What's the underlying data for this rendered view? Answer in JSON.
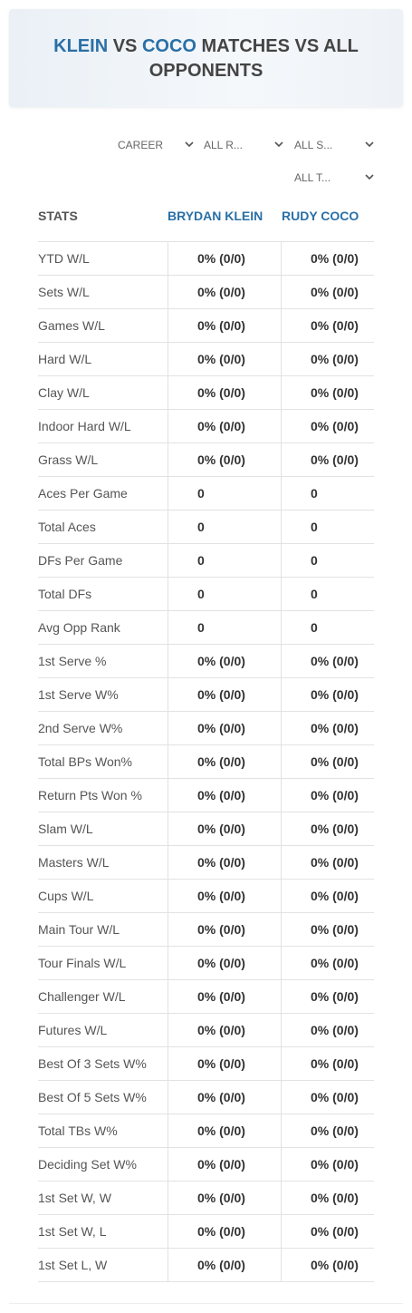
{
  "header": {
    "player1": "KLEIN",
    "vs": "VS",
    "player2": "COCO",
    "rest": "MATCHES VS ALL OPPONENTS"
  },
  "filters": [
    "CAREER",
    "ALL R...",
    "ALL S...",
    "ALL T..."
  ],
  "table": {
    "columns": [
      "STATS",
      "BRYDAN KLEIN",
      "RUDY COCO"
    ],
    "rows": [
      [
        "YTD W/L",
        "0% (0/0)",
        "0% (0/0)"
      ],
      [
        "Sets W/L",
        "0% (0/0)",
        "0% (0/0)"
      ],
      [
        "Games W/L",
        "0% (0/0)",
        "0% (0/0)"
      ],
      [
        "Hard W/L",
        "0% (0/0)",
        "0% (0/0)"
      ],
      [
        "Clay W/L",
        "0% (0/0)",
        "0% (0/0)"
      ],
      [
        "Indoor Hard W/L",
        "0% (0/0)",
        "0% (0/0)"
      ],
      [
        "Grass W/L",
        "0% (0/0)",
        "0% (0/0)"
      ],
      [
        "Aces Per Game",
        "0",
        "0"
      ],
      [
        "Total Aces",
        "0",
        "0"
      ],
      [
        "DFs Per Game",
        "0",
        "0"
      ],
      [
        "Total DFs",
        "0",
        "0"
      ],
      [
        "Avg Opp Rank",
        "0",
        "0"
      ],
      [
        "1st Serve %",
        "0% (0/0)",
        "0% (0/0)"
      ],
      [
        "1st Serve W%",
        "0% (0/0)",
        "0% (0/0)"
      ],
      [
        "2nd Serve W%",
        "0% (0/0)",
        "0% (0/0)"
      ],
      [
        "Total BPs Won%",
        "0% (0/0)",
        "0% (0/0)"
      ],
      [
        "Return Pts Won %",
        "0% (0/0)",
        "0% (0/0)"
      ],
      [
        "Slam W/L",
        "0% (0/0)",
        "0% (0/0)"
      ],
      [
        "Masters W/L",
        "0% (0/0)",
        "0% (0/0)"
      ],
      [
        "Cups W/L",
        "0% (0/0)",
        "0% (0/0)"
      ],
      [
        "Main Tour W/L",
        "0% (0/0)",
        "0% (0/0)"
      ],
      [
        "Tour Finals W/L",
        "0% (0/0)",
        "0% (0/0)"
      ],
      [
        "Challenger W/L",
        "0% (0/0)",
        "0% (0/0)"
      ],
      [
        "Futures W/L",
        "0% (0/0)",
        "0% (0/0)"
      ],
      [
        "Best Of 3 Sets W%",
        "0% (0/0)",
        "0% (0/0)"
      ],
      [
        "Best Of 5 Sets W%",
        "0% (0/0)",
        "0% (0/0)"
      ],
      [
        "Total TBs W%",
        "0% (0/0)",
        "0% (0/0)"
      ],
      [
        "Deciding Set W%",
        "0% (0/0)",
        "0% (0/0)"
      ],
      [
        "1st Set W, W",
        "0% (0/0)",
        "0% (0/0)"
      ],
      [
        "1st Set W, L",
        "0% (0/0)",
        "0% (0/0)"
      ],
      [
        "1st Set L, W",
        "0% (0/0)",
        "0% (0/0)"
      ]
    ]
  }
}
